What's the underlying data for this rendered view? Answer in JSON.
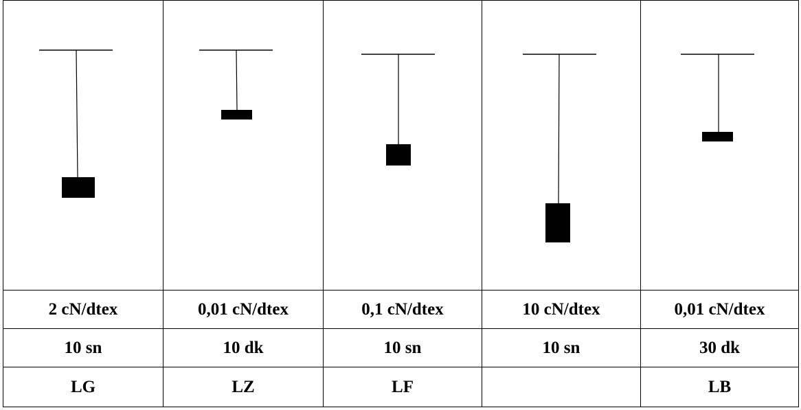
{
  "columns": [
    {
      "load": "2 cN/dtex",
      "time": "10 sn",
      "code": "LG"
    },
    {
      "load": "0,01 cN/dtex",
      "time": "10 dk",
      "code": "LZ"
    },
    {
      "load": "0,1 cN/dtex",
      "time": "10 sn",
      "code": "LF"
    },
    {
      "load": "10 cN/dtex",
      "time": "10 sn",
      "code": ""
    },
    {
      "load": "0,01 cN/dtex",
      "time": "30 dk",
      "code": "LB"
    }
  ],
  "colors": {
    "line": "#000000",
    "weight": "#000000",
    "border": "#000000",
    "background": "#ffffff"
  }
}
